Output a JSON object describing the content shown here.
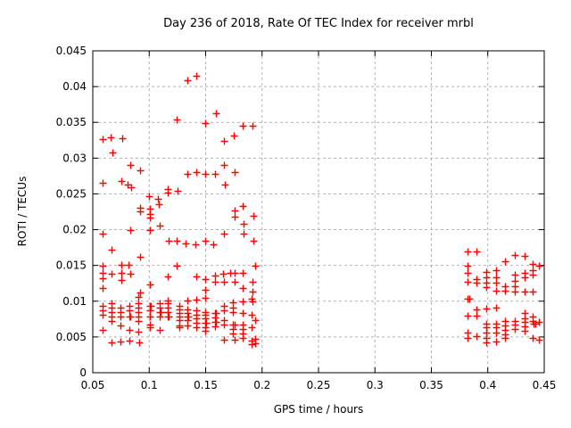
{
  "chart_data": {
    "type": "scatter",
    "title": "Day 236 of 2018, Rate Of TEC Index for receiver mrbl",
    "xlabel": "GPS time / hours",
    "ylabel": "ROTI / TECUs",
    "xlim": [
      0.05,
      0.45
    ],
    "ylim": [
      0,
      0.045
    ],
    "xticks": [
      0.05,
      0.1,
      0.15,
      0.2,
      0.25,
      0.3,
      0.35,
      0.4,
      0.45
    ],
    "xtick_labels": [
      "0.05",
      "0.1",
      "0.15",
      "0.2",
      "0.25",
      "0.3",
      "0.35",
      "0.4",
      "0.45"
    ],
    "yticks": [
      0,
      0.005,
      0.01,
      0.015,
      0.02,
      0.025,
      0.03,
      0.035,
      0.04,
      0.045
    ],
    "ytick_labels": [
      "0",
      "0.005",
      "0.01",
      "0.015",
      "0.02",
      "0.025",
      "0.03",
      "0.035",
      "0.04",
      "0.045"
    ],
    "grid": true,
    "legend": "none",
    "marker": "plus",
    "marker_color": "#ff0000",
    "grid_color": "#b0b0b0",
    "border_color": "#000000",
    "points": [
      [
        0.059,
        0.0327
      ],
      [
        0.066,
        0.0329
      ],
      [
        0.076,
        0.0328
      ],
      [
        0.067,
        0.0308
      ],
      [
        0.1336,
        0.0409
      ],
      [
        0.1415,
        0.0415
      ],
      [
        0.1246,
        0.0354
      ],
      [
        0.1589,
        0.0363
      ],
      [
        0.1496,
        0.0349
      ],
      [
        0.1826,
        0.0345
      ],
      [
        0.1915,
        0.0345
      ],
      [
        0.1749,
        0.0332
      ],
      [
        0.1662,
        0.0324
      ],
      [
        0.083,
        0.029
      ],
      [
        0.0922,
        0.0283
      ],
      [
        0.0589,
        0.0266
      ],
      [
        0.0753,
        0.0268
      ],
      [
        0.0806,
        0.0263
      ],
      [
        0.0838,
        0.0259
      ],
      [
        0.166,
        0.029
      ],
      [
        0.176,
        0.0281
      ],
      [
        0.1336,
        0.0278
      ],
      [
        0.1417,
        0.028
      ],
      [
        0.1496,
        0.0278
      ],
      [
        0.158,
        0.0278
      ],
      [
        0.1673,
        0.0263
      ],
      [
        0.1251,
        0.0254
      ],
      [
        0.1164,
        0.0257
      ],
      [
        0.1164,
        0.0252
      ],
      [
        0.1001,
        0.0247
      ],
      [
        0.108,
        0.0243
      ],
      [
        0.1088,
        0.0235
      ],
      [
        0.0917,
        0.023
      ],
      [
        0.0917,
        0.0225
      ],
      [
        0.1003,
        0.0229
      ],
      [
        0.1003,
        0.0222
      ],
      [
        0.1003,
        0.0217
      ],
      [
        0.1093,
        0.0206
      ],
      [
        0.083,
        0.02
      ],
      [
        0.0585,
        0.0195
      ],
      [
        0.1003,
        0.02
      ],
      [
        0.1831,
        0.0233
      ],
      [
        0.176,
        0.0227
      ],
      [
        0.176,
        0.0218
      ],
      [
        0.1921,
        0.022
      ],
      [
        0.1836,
        0.0208
      ],
      [
        0.117,
        0.0184
      ],
      [
        0.0666,
        0.0172
      ],
      [
        0.0922,
        0.0162
      ],
      [
        0.1662,
        0.0194
      ],
      [
        0.1836,
        0.0194
      ],
      [
        0.1246,
        0.0184
      ],
      [
        0.1325,
        0.0181
      ],
      [
        0.1412,
        0.0179
      ],
      [
        0.1496,
        0.0185
      ],
      [
        0.157,
        0.0179
      ],
      [
        0.1923,
        0.0185
      ],
      [
        0.0753,
        0.0151
      ],
      [
        0.0819,
        0.0151
      ],
      [
        0.0585,
        0.015
      ],
      [
        0.1246,
        0.0149
      ],
      [
        0.1935,
        0.0149
      ],
      [
        0.0585,
        0.014
      ],
      [
        0.0666,
        0.0138
      ],
      [
        0.075,
        0.0139
      ],
      [
        0.083,
        0.0138
      ],
      [
        0.0585,
        0.0132
      ],
      [
        0.075,
        0.013
      ],
      [
        0.1167,
        0.0135
      ],
      [
        0.1415,
        0.0135
      ],
      [
        0.1496,
        0.0131
      ],
      [
        0.158,
        0.0136
      ],
      [
        0.158,
        0.0127
      ],
      [
        0.1654,
        0.0138
      ],
      [
        0.166,
        0.0127
      ],
      [
        0.1717,
        0.0139
      ],
      [
        0.176,
        0.0139
      ],
      [
        0.176,
        0.0127
      ],
      [
        0.1831,
        0.0139
      ],
      [
        0.1918,
        0.0127
      ],
      [
        0.0585,
        0.0118
      ],
      [
        0.1003,
        0.0124
      ],
      [
        0.0922,
        0.0112
      ],
      [
        0.1496,
        0.0116
      ],
      [
        0.1831,
        0.0119
      ],
      [
        0.1918,
        0.0114
      ],
      [
        0.1336,
        0.0101
      ],
      [
        0.1415,
        0.0102
      ],
      [
        0.1831,
        0.01
      ],
      [
        0.1918,
        0.01
      ],
      [
        0.1493,
        0.0105
      ],
      [
        0.1744,
        0.0099
      ],
      [
        0.191,
        0.0103
      ],
      [
        0.0906,
        0.0106
      ],
      [
        0.1164,
        0.0101
      ],
      [
        0.0585,
        0.0093
      ],
      [
        0.0585,
        0.0087
      ],
      [
        0.0585,
        0.0081
      ],
      [
        0.0585,
        0.006
      ],
      [
        0.0664,
        0.0097
      ],
      [
        0.0664,
        0.0091
      ],
      [
        0.0664,
        0.0085
      ],
      [
        0.0664,
        0.0078
      ],
      [
        0.0664,
        0.0072
      ],
      [
        0.0746,
        0.0091
      ],
      [
        0.0746,
        0.0085
      ],
      [
        0.0746,
        0.0078
      ],
      [
        0.0746,
        0.0066
      ],
      [
        0.0824,
        0.0093
      ],
      [
        0.0824,
        0.0087
      ],
      [
        0.0824,
        0.0078
      ],
      [
        0.0834,
        0.0078
      ],
      [
        0.0824,
        0.006
      ],
      [
        0.0906,
        0.0097
      ],
      [
        0.0906,
        0.0091
      ],
      [
        0.0906,
        0.0085
      ],
      [
        0.0906,
        0.0078
      ],
      [
        0.0906,
        0.0072
      ],
      [
        0.0906,
        0.0057
      ],
      [
        0.1003,
        0.0093
      ],
      [
        0.1013,
        0.0093
      ],
      [
        0.1003,
        0.0087
      ],
      [
        0.1003,
        0.0078
      ],
      [
        0.1003,
        0.0067
      ],
      [
        0.1003,
        0.0064
      ],
      [
        0.1093,
        0.0097
      ],
      [
        0.1093,
        0.0091
      ],
      [
        0.1093,
        0.0085
      ],
      [
        0.1103,
        0.0085
      ],
      [
        0.1093,
        0.0078
      ],
      [
        0.1093,
        0.006
      ],
      [
        0.1164,
        0.0097
      ],
      [
        0.1164,
        0.0091
      ],
      [
        0.1164,
        0.0085
      ],
      [
        0.1164,
        0.0078
      ],
      [
        0.1174,
        0.0078
      ],
      [
        0.1264,
        0.0093
      ],
      [
        0.1264,
        0.0089
      ],
      [
        0.1264,
        0.0084
      ],
      [
        0.1264,
        0.0079
      ],
      [
        0.1264,
        0.0073
      ],
      [
        0.1264,
        0.0066
      ],
      [
        0.1264,
        0.0063
      ],
      [
        0.1336,
        0.0089
      ],
      [
        0.1336,
        0.0084
      ],
      [
        0.1336,
        0.0079
      ],
      [
        0.1346,
        0.0079
      ],
      [
        0.1336,
        0.0073
      ],
      [
        0.1336,
        0.0066
      ],
      [
        0.1415,
        0.0087
      ],
      [
        0.1415,
        0.0081
      ],
      [
        0.1415,
        0.0076
      ],
      [
        0.1415,
        0.007
      ],
      [
        0.1415,
        0.0064
      ],
      [
        0.1496,
        0.0085
      ],
      [
        0.1496,
        0.0081
      ],
      [
        0.1496,
        0.0076
      ],
      [
        0.1496,
        0.007
      ],
      [
        0.1506,
        0.007
      ],
      [
        0.1496,
        0.0064
      ],
      [
        0.1496,
        0.0058
      ],
      [
        0.158,
        0.0083
      ],
      [
        0.159,
        0.0083
      ],
      [
        0.158,
        0.0077
      ],
      [
        0.158,
        0.0071
      ],
      [
        0.159,
        0.0071
      ],
      [
        0.158,
        0.0065
      ],
      [
        0.166,
        0.0093
      ],
      [
        0.166,
        0.0087
      ],
      [
        0.166,
        0.0073
      ],
      [
        0.166,
        0.0067
      ],
      [
        0.1744,
        0.0091
      ],
      [
        0.1744,
        0.0085
      ],
      [
        0.1744,
        0.0067
      ],
      [
        0.1754,
        0.0067
      ],
      [
        0.1744,
        0.0061
      ],
      [
        0.1744,
        0.0055
      ],
      [
        0.1828,
        0.0083
      ],
      [
        0.1828,
        0.0067
      ],
      [
        0.1828,
        0.0061
      ],
      [
        0.1828,
        0.0055
      ],
      [
        0.191,
        0.0081
      ],
      [
        0.191,
        0.0063
      ],
      [
        0.194,
        0.0074
      ],
      [
        0.0666,
        0.0042
      ],
      [
        0.0745,
        0.0044
      ],
      [
        0.0824,
        0.0045
      ],
      [
        0.0911,
        0.0042
      ],
      [
        0.166,
        0.0046
      ],
      [
        0.176,
        0.0046
      ],
      [
        0.1831,
        0.0048
      ],
      [
        0.191,
        0.0045
      ],
      [
        0.191,
        0.004
      ],
      [
        0.194,
        0.0047
      ],
      [
        0.194,
        0.0041
      ],
      [
        0.382,
        0.0169
      ],
      [
        0.39,
        0.0169
      ],
      [
        0.4237,
        0.0165
      ],
      [
        0.4324,
        0.0163
      ],
      [
        0.4153,
        0.0156
      ],
      [
        0.382,
        0.015
      ],
      [
        0.4395,
        0.0152
      ],
      [
        0.4455,
        0.015
      ],
      [
        0.4395,
        0.0143
      ],
      [
        0.4395,
        0.0137
      ],
      [
        0.382,
        0.0139
      ],
      [
        0.3986,
        0.0141
      ],
      [
        0.3986,
        0.0134
      ],
      [
        0.407,
        0.0143
      ],
      [
        0.407,
        0.0133
      ],
      [
        0.39,
        0.0131
      ],
      [
        0.39,
        0.0126
      ],
      [
        0.382,
        0.0127
      ],
      [
        0.3986,
        0.0126
      ],
      [
        0.3986,
        0.012
      ],
      [
        0.407,
        0.0126
      ],
      [
        0.407,
        0.0115
      ],
      [
        0.4153,
        0.0121
      ],
      [
        0.4153,
        0.0115
      ],
      [
        0.4237,
        0.0137
      ],
      [
        0.4237,
        0.0129
      ],
      [
        0.4237,
        0.0121
      ],
      [
        0.4237,
        0.0113
      ],
      [
        0.4324,
        0.0139
      ],
      [
        0.4324,
        0.0134
      ],
      [
        0.4324,
        0.0114
      ],
      [
        0.4395,
        0.0114
      ],
      [
        0.382,
        0.0103
      ],
      [
        0.3835,
        0.0103
      ],
      [
        0.39,
        0.0089
      ],
      [
        0.3986,
        0.009
      ],
      [
        0.407,
        0.0091
      ],
      [
        0.382,
        0.008
      ],
      [
        0.39,
        0.008
      ],
      [
        0.3986,
        0.0069
      ],
      [
        0.3986,
        0.0063
      ],
      [
        0.3986,
        0.0056
      ],
      [
        0.407,
        0.0069
      ],
      [
        0.407,
        0.0063
      ],
      [
        0.407,
        0.0056
      ],
      [
        0.4153,
        0.0072
      ],
      [
        0.4153,
        0.0066
      ],
      [
        0.4153,
        0.006
      ],
      [
        0.4153,
        0.0053
      ],
      [
        0.4237,
        0.0072
      ],
      [
        0.4237,
        0.0067
      ],
      [
        0.4237,
        0.0061
      ],
      [
        0.4324,
        0.0083
      ],
      [
        0.4324,
        0.0076
      ],
      [
        0.4324,
        0.0071
      ],
      [
        0.4324,
        0.0065
      ],
      [
        0.4324,
        0.0058
      ],
      [
        0.4395,
        0.0078
      ],
      [
        0.4395,
        0.0072
      ],
      [
        0.4408,
        0.0069
      ],
      [
        0.4422,
        0.0069
      ],
      [
        0.4455,
        0.0071
      ],
      [
        0.382,
        0.0056
      ],
      [
        0.382,
        0.0049
      ],
      [
        0.39,
        0.0051
      ],
      [
        0.3986,
        0.0049
      ],
      [
        0.3986,
        0.0043
      ],
      [
        0.407,
        0.0044
      ],
      [
        0.4153,
        0.0049
      ],
      [
        0.4395,
        0.0049
      ],
      [
        0.4455,
        0.0046
      ]
    ]
  }
}
